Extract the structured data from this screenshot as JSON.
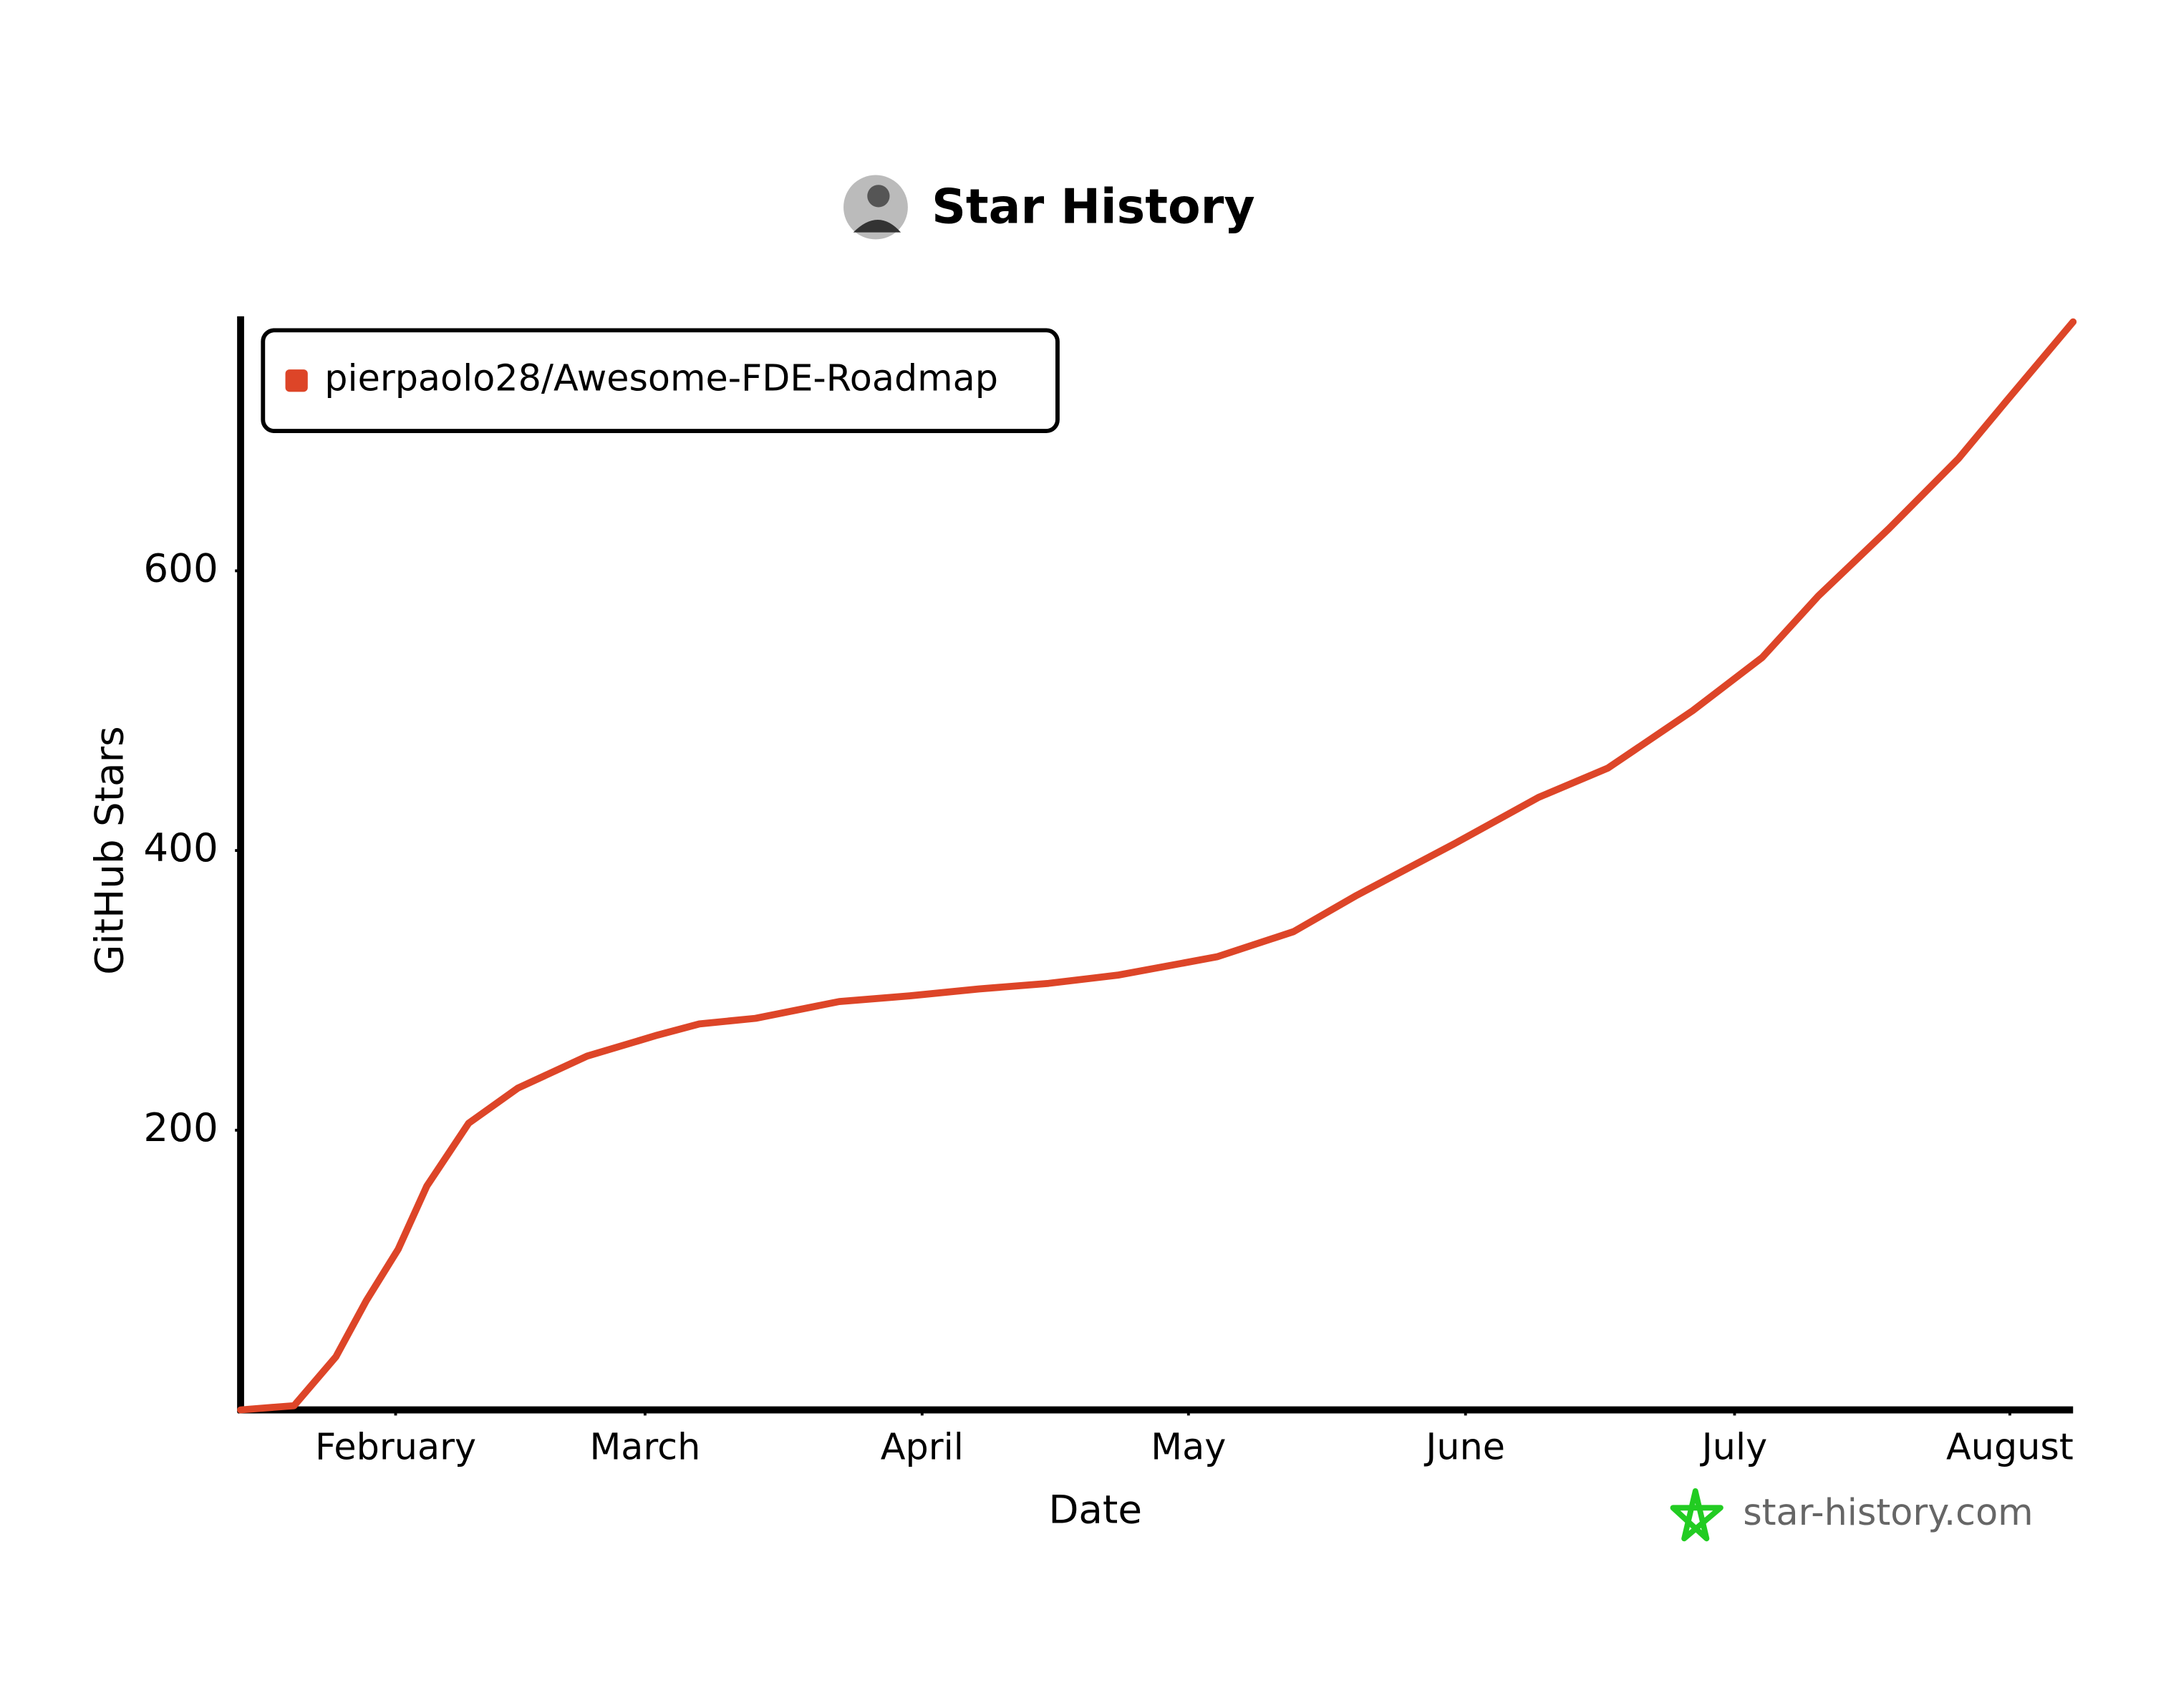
{
  "chart_data": {
    "type": "line",
    "title": "Star History",
    "x_label": "Date",
    "y_label": "GitHub Stars",
    "watermark": "star-history.com",
    "legend": "top-left",
    "xlim": [
      0,
      205.7
    ],
    "ylim": [
      0,
      782
    ],
    "xticks": [
      {
        "value": 17.4,
        "label": "February"
      },
      {
        "value": 45.4,
        "label": "March"
      },
      {
        "value": 76.5,
        "label": "April"
      },
      {
        "value": 106.4,
        "label": "May"
      },
      {
        "value": 137.5,
        "label": "June"
      },
      {
        "value": 167.7,
        "label": "July"
      },
      {
        "value": 198.6,
        "label": "August"
      }
    ],
    "yticks": [
      200,
      400,
      600
    ],
    "series": [
      {
        "name": "pierpaolo28/Awesome-FDE-Roadmap",
        "color": "#dd4528",
        "x": [
          0,
          6,
          10.7,
          14.1,
          17.7,
          20.9,
          25.6,
          31.1,
          38.9,
          46.8,
          51.5,
          57.8,
          67.2,
          75,
          82.9,
          90.7,
          98.6,
          109.6,
          118.2,
          125.3,
          136.3,
          145.7,
          153.5,
          163,
          170.8,
          177.1,
          185,
          192.8,
          198.3,
          205.7
        ],
        "values": [
          0,
          3,
          38,
          78,
          115,
          160,
          205,
          230,
          253,
          268,
          276,
          280,
          292,
          296,
          301,
          305,
          311,
          324,
          342,
          368,
          405,
          438,
          459,
          500,
          538,
          582,
          630,
          680,
          722,
          778
        ]
      }
    ]
  }
}
